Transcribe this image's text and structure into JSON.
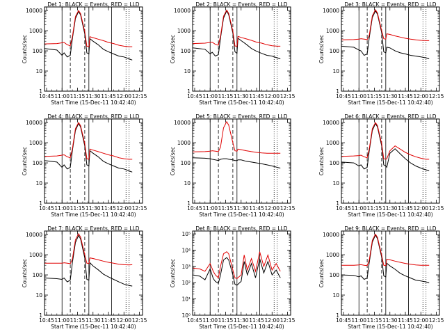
{
  "xlabel": "Start Time (15-Dec-11 10:42:40)",
  "ylabel": "Counts/sec",
  "x_ticks": [
    "10:45",
    "11:00",
    "11:15",
    "11:30",
    "11:45",
    "12:00",
    "12:15"
  ],
  "y_ticks_decades": [
    "1",
    "10",
    "100",
    "1000",
    "10000"
  ],
  "x_range_minutes_after_10_00": [
    43,
    138
  ],
  "colors": {
    "events": "#000000",
    "lld": "#e00000",
    "axis": "#000000"
  },
  "chart_data": [
    {
      "type": "line",
      "title": "Det 1: BLACK = Events, RED = LLD",
      "ylog": true,
      "ylim": [
        1,
        15000
      ],
      "x_time": [
        "10:43",
        "10:55",
        "11:00",
        "11:02",
        "11:05",
        "11:08",
        "11:10",
        "11:13",
        "11:16",
        "11:18",
        "11:22",
        "11:24",
        "11:26",
        "11:27",
        "11:30",
        "11:35",
        "11:40",
        "11:45",
        "11:50",
        "11:55",
        "12:00",
        "12:05",
        "12:08"
      ],
      "series": [
        {
          "name": "Events",
          "values": [
            130,
            110,
            60,
            80,
            50,
            60,
            400,
            4000,
            9000,
            6000,
            700,
            80,
            70,
            400,
            300,
            200,
            120,
            90,
            70,
            55,
            50,
            40,
            35
          ]
        },
        {
          "name": "LLD",
          "values": [
            220,
            230,
            250,
            260,
            200,
            180,
            500,
            5000,
            10000,
            7000,
            900,
            170,
            160,
            500,
            450,
            380,
            320,
            260,
            230,
            190,
            170,
            160,
            160
          ]
        }
      ],
      "markers": {
        "solid": [
          "11:00",
          "11:26",
          "11:48"
        ],
        "dashed": [
          "11:08",
          "11:22"
        ],
        "dotted": [
          "12:02",
          "12:05"
        ]
      }
    },
    {
      "type": "line",
      "title": "Det 2: BLACK = Events, RED = LLD",
      "ylog": true,
      "ylim": [
        1,
        15000
      ],
      "x_time": [
        "10:43",
        "10:55",
        "11:00",
        "11:02",
        "11:05",
        "11:08",
        "11:10",
        "11:13",
        "11:16",
        "11:18",
        "11:22",
        "11:24",
        "11:26",
        "11:27",
        "11:30",
        "11:35",
        "11:40",
        "11:45",
        "11:50",
        "11:55",
        "12:00",
        "12:05",
        "12:08"
      ],
      "series": [
        {
          "name": "Events",
          "values": [
            140,
            120,
            70,
            85,
            55,
            65,
            420,
            4200,
            9500,
            6200,
            750,
            90,
            75,
            420,
            320,
            210,
            130,
            95,
            75,
            60,
            55,
            45,
            40
          ]
        },
        {
          "name": "LLD",
          "values": [
            230,
            240,
            260,
            270,
            210,
            190,
            520,
            5200,
            10500,
            7200,
            950,
            175,
            165,
            520,
            460,
            390,
            330,
            270,
            240,
            200,
            180,
            170,
            170
          ]
        }
      ],
      "markers": {
        "solid": [
          "11:00",
          "11:26",
          "11:48"
        ],
        "dashed": [
          "11:08",
          "11:22"
        ],
        "dotted": [
          "12:02",
          "12:05"
        ]
      }
    },
    {
      "type": "line",
      "title": "Det 3: BLACK = Events, RED = LLD",
      "ylog": true,
      "ylim": [
        1,
        15000
      ],
      "x_time": [
        "10:43",
        "10:55",
        "11:00",
        "11:02",
        "11:05",
        "11:08",
        "11:10",
        "11:13",
        "11:16",
        "11:18",
        "11:22",
        "11:24",
        "11:26",
        "11:27",
        "11:30",
        "11:35",
        "11:40",
        "11:45",
        "11:50",
        "11:55",
        "12:00",
        "12:05",
        "12:08"
      ],
      "series": [
        {
          "name": "Events",
          "values": [
            170,
            150,
            110,
            100,
            60,
            70,
            450,
            4500,
            9500,
            6500,
            800,
            90,
            80,
            150,
            140,
            100,
            80,
            70,
            60,
            55,
            50,
            45,
            40
          ]
        },
        {
          "name": "LLD",
          "values": [
            350,
            360,
            380,
            400,
            380,
            360,
            600,
            5500,
            11000,
            7500,
            1000,
            400,
            380,
            700,
            650,
            550,
            480,
            420,
            380,
            350,
            330,
            320,
            320
          ]
        }
      ],
      "markers": {
        "solid": [
          "11:00",
          "11:26",
          "11:48"
        ],
        "dashed": [
          "11:08",
          "11:22"
        ],
        "dotted": [
          "12:02",
          "12:05"
        ]
      }
    },
    {
      "type": "line",
      "title": "Det 4: BLACK = Events, RED = LLD",
      "ylog": true,
      "ylim": [
        1,
        15000
      ],
      "x_time": [
        "10:43",
        "10:55",
        "11:00",
        "11:02",
        "11:05",
        "11:08",
        "11:10",
        "11:13",
        "11:16",
        "11:18",
        "11:22",
        "11:24",
        "11:26",
        "11:27",
        "11:30",
        "11:35",
        "11:40",
        "11:45",
        "11:50",
        "11:55",
        "12:00",
        "12:05",
        "12:08"
      ],
      "series": [
        {
          "name": "Events",
          "values": [
            130,
            110,
            60,
            80,
            50,
            60,
            400,
            4000,
            9000,
            6000,
            700,
            80,
            70,
            400,
            300,
            200,
            120,
            90,
            70,
            55,
            50,
            40,
            35
          ]
        },
        {
          "name": "LLD",
          "values": [
            210,
            220,
            240,
            250,
            200,
            180,
            500,
            5000,
            10000,
            7000,
            900,
            160,
            150,
            480,
            430,
            360,
            300,
            250,
            220,
            180,
            160,
            150,
            150
          ]
        }
      ],
      "markers": {
        "solid": [
          "11:00",
          "11:26",
          "11:48"
        ],
        "dashed": [
          "11:08",
          "11:22"
        ],
        "dotted": [
          "12:02",
          "12:05"
        ]
      }
    },
    {
      "type": "line",
      "title": "Det 5: BLACK = Events, RED = LLD",
      "ylog": true,
      "ylim": [
        1,
        15000
      ],
      "x_time": [
        "10:43",
        "10:55",
        "11:00",
        "11:02",
        "11:05",
        "11:08",
        "11:10",
        "11:13",
        "11:16",
        "11:18",
        "11:22",
        "11:24",
        "11:26",
        "11:27",
        "11:30",
        "11:35",
        "11:40",
        "11:45",
        "11:50",
        "11:55",
        "12:00",
        "12:05",
        "12:08"
      ],
      "series": [
        {
          "name": "Events",
          "values": [
            180,
            170,
            160,
            150,
            140,
            130,
            150,
            160,
            160,
            150,
            140,
            130,
            130,
            140,
            140,
            120,
            110,
            100,
            90,
            80,
            70,
            60,
            55
          ]
        },
        {
          "name": "LLD",
          "values": [
            350,
            360,
            380,
            400,
            380,
            360,
            600,
            5500,
            11000,
            7500,
            1000,
            400,
            380,
            480,
            450,
            400,
            360,
            330,
            310,
            300,
            300,
            300,
            300
          ]
        }
      ],
      "markers": {
        "solid": [
          "11:00",
          "11:26",
          "11:48"
        ],
        "dashed": [
          "11:08",
          "11:22"
        ],
        "dotted": [
          "12:02",
          "12:05"
        ]
      }
    },
    {
      "type": "line",
      "title": "Det 6: BLACK = Events, RED = LLD",
      "ylog": true,
      "ylim": [
        1,
        15000
      ],
      "x_time": [
        "10:43",
        "10:55",
        "11:00",
        "11:02",
        "11:05",
        "11:08",
        "11:10",
        "11:13",
        "11:16",
        "11:18",
        "11:22",
        "11:24",
        "11:26",
        "11:27",
        "11:30",
        "11:35",
        "11:40",
        "11:45",
        "11:50",
        "11:55",
        "12:00",
        "12:05",
        "12:08"
      ],
      "series": [
        {
          "name": "Events",
          "values": [
            110,
            100,
            70,
            80,
            50,
            60,
            400,
            4000,
            9000,
            6000,
            700,
            80,
            70,
            60,
            300,
            500,
            280,
            160,
            100,
            70,
            55,
            45,
            40
          ]
        },
        {
          "name": "LLD",
          "values": [
            210,
            220,
            230,
            240,
            200,
            180,
            500,
            5000,
            10000,
            7000,
            900,
            160,
            150,
            160,
            400,
            700,
            480,
            330,
            250,
            200,
            170,
            150,
            150
          ]
        }
      ],
      "markers": {
        "solid": [
          "11:00",
          "11:26",
          "11:48"
        ],
        "dashed": [
          "11:08",
          "11:22"
        ],
        "dotted": [
          "12:02",
          "12:05"
        ]
      }
    },
    {
      "type": "line",
      "title": "Det 7: BLACK = Events, RED = LLD",
      "ylog": true,
      "ylim": [
        1,
        15000
      ],
      "x_time": [
        "10:43",
        "10:55",
        "11:00",
        "11:02",
        "11:05",
        "11:08",
        "11:10",
        "11:13",
        "11:16",
        "11:18",
        "11:22",
        "11:24",
        "11:26",
        "11:27",
        "11:30",
        "11:35",
        "11:40",
        "11:45",
        "11:50",
        "11:55",
        "12:00",
        "12:05",
        "12:08"
      ],
      "series": [
        {
          "name": "Events",
          "values": [
            70,
            65,
            60,
            70,
            45,
            55,
            400,
            4000,
            9000,
            6000,
            700,
            60,
            55,
            400,
            280,
            180,
            110,
            80,
            60,
            45,
            35,
            30,
            28
          ]
        },
        {
          "name": "LLD",
          "values": [
            380,
            380,
            380,
            400,
            380,
            360,
            600,
            5500,
            11000,
            7500,
            1000,
            380,
            370,
            700,
            650,
            560,
            480,
            420,
            380,
            340,
            320,
            310,
            320
          ]
        }
      ],
      "markers": {
        "solid": [
          "11:00",
          "11:26",
          "11:48"
        ],
        "dashed": [
          "11:08",
          "11:22"
        ],
        "dotted": [
          "12:02",
          "12:05"
        ]
      }
    },
    {
      "type": "line",
      "title": "Det 8: BLACK = Events, RED = LLD",
      "ylog": true,
      "ylim": [
        1,
        150000
      ],
      "y_ticks": [
        "10⁰",
        "10¹",
        "10²",
        "10³",
        "10⁴",
        "10⁵"
      ],
      "x_time": [
        "10:43",
        "10:50",
        "10:55",
        "11:00",
        "11:03",
        "11:05",
        "11:08",
        "11:10",
        "11:13",
        "11:16",
        "11:18",
        "11:22",
        "11:24",
        "11:26",
        "11:30",
        "11:33",
        "11:36",
        "11:40",
        "11:44",
        "11:48",
        "11:52",
        "11:56",
        "12:00",
        "12:04",
        "12:08"
      ],
      "series": [
        {
          "name": "Events",
          "values": [
            300,
            250,
            150,
            700,
            180,
            120,
            90,
            300,
            2500,
            3500,
            2500,
            300,
            80,
            70,
            120,
            2000,
            300,
            1500,
            200,
            3000,
            400,
            2000,
            300,
            600,
            200
          ]
        },
        {
          "name": "LLD",
          "values": [
            800,
            700,
            500,
            1500,
            500,
            300,
            200,
            1000,
            6000,
            8000,
            6000,
            600,
            200,
            180,
            300,
            5000,
            600,
            3000,
            500,
            8000,
            1000,
            5000,
            600,
            1500,
            500
          ]
        }
      ],
      "markers": {
        "solid": [
          "11:00",
          "11:26",
          "11:48"
        ],
        "dashed": [
          "11:08",
          "11:22"
        ],
        "dotted": [
          "12:02",
          "12:05"
        ]
      }
    },
    {
      "type": "line",
      "title": "Det 9: BLACK = Events, RED = LLD",
      "ylog": true,
      "ylim": [
        1,
        15000
      ],
      "x_time": [
        "10:43",
        "10:55",
        "11:00",
        "11:02",
        "11:05",
        "11:08",
        "11:10",
        "11:13",
        "11:16",
        "11:18",
        "11:22",
        "11:24",
        "11:26",
        "11:27",
        "11:30",
        "11:35",
        "11:40",
        "11:45",
        "11:50",
        "11:55",
        "12:00",
        "12:05",
        "12:08"
      ],
      "series": [
        {
          "name": "Events",
          "values": [
            100,
            95,
            80,
            90,
            60,
            70,
            420,
            4200,
            9500,
            6200,
            750,
            90,
            80,
            380,
            280,
            190,
            120,
            90,
            70,
            55,
            50,
            45,
            40
          ]
        },
        {
          "name": "LLD",
          "values": [
            300,
            300,
            310,
            320,
            300,
            290,
            550,
            5200,
            10500,
            7200,
            950,
            300,
            290,
            600,
            560,
            480,
            420,
            370,
            340,
            310,
            300,
            300,
            300
          ]
        }
      ],
      "markers": {
        "solid": [
          "11:00",
          "11:26",
          "11:48"
        ],
        "dashed": [
          "11:08",
          "11:22"
        ],
        "dotted": [
          "12:02",
          "12:05"
        ]
      }
    }
  ]
}
